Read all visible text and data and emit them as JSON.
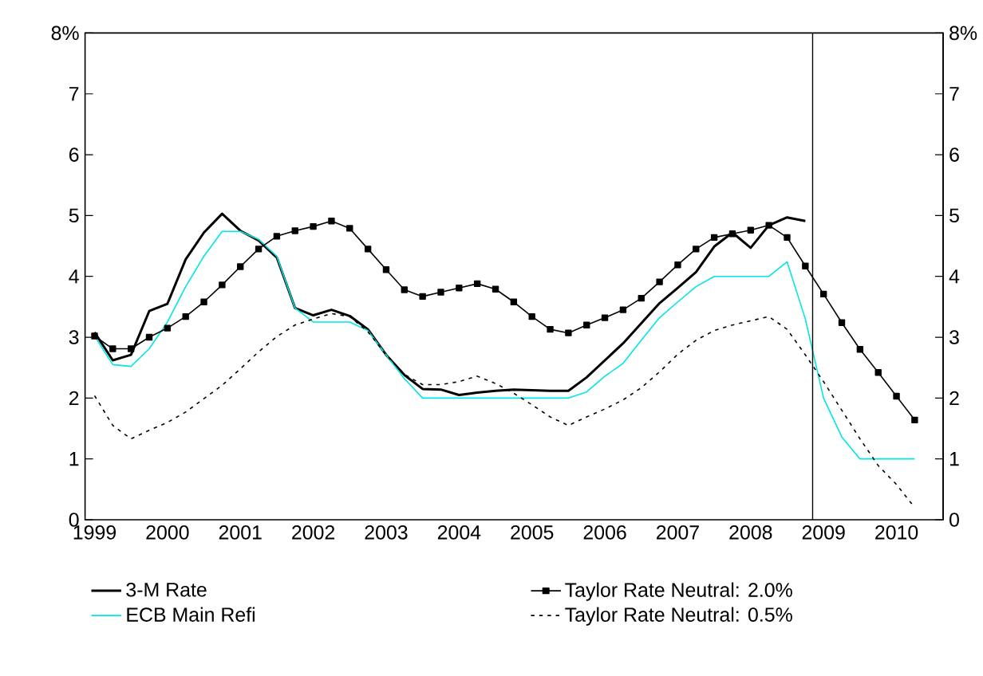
{
  "chart_data": {
    "type": "line",
    "x": [
      1999,
      1999.25,
      1999.5,
      1999.75,
      2000,
      2000.25,
      2000.5,
      2000.75,
      2001,
      2001.25,
      2001.5,
      2001.75,
      2002,
      2002.25,
      2002.5,
      2002.75,
      2003,
      2003.25,
      2003.5,
      2003.75,
      2004,
      2004.25,
      2004.5,
      2004.75,
      2005,
      2005.25,
      2005.5,
      2005.75,
      2006,
      2006.25,
      2006.5,
      2006.75,
      2007,
      2007.25,
      2007.5,
      2007.75,
      2008,
      2008.25,
      2008.5,
      2008.75,
      2009,
      2009.25,
      2009.5,
      2009.75,
      2010,
      2010.25
    ],
    "series": [
      {
        "name": "3-M Rate",
        "color": "#000000",
        "line_style": "solid",
        "marker": "none",
        "values": [
          3.08,
          2.62,
          2.71,
          3.43,
          3.55,
          4.28,
          4.72,
          5.03,
          4.75,
          4.59,
          4.31,
          3.48,
          3.36,
          3.45,
          3.35,
          3.13,
          2.71,
          2.38,
          2.15,
          2.14,
          2.05,
          2.09,
          2.12,
          2.14,
          2.13,
          2.12,
          2.12,
          2.34,
          2.62,
          2.9,
          3.23,
          3.56,
          3.81,
          4.07,
          4.49,
          4.72,
          4.47,
          4.84,
          4.97,
          4.91,
          null,
          null,
          null,
          null,
          null,
          null
        ]
      },
      {
        "name": "ECB Main Refi",
        "color": "#00e5e5",
        "line_style": "solid",
        "marker": "none",
        "values": [
          3.02,
          2.55,
          2.52,
          2.81,
          3.25,
          3.83,
          4.33,
          4.74,
          4.74,
          4.61,
          4.33,
          3.48,
          3.25,
          3.25,
          3.25,
          3.11,
          2.71,
          2.32,
          2.0,
          2.0,
          2.0,
          2.0,
          2.0,
          2.0,
          2.0,
          2.0,
          2.0,
          2.1,
          2.36,
          2.57,
          2.95,
          3.32,
          3.58,
          3.83,
          4.0,
          4.0,
          4.0,
          4.0,
          4.24,
          3.3,
          2.0,
          1.36,
          1.0,
          1.0,
          1.0,
          1.0
        ]
      },
      {
        "name": "Taylor Rate Neutral: 2.0%",
        "color": "#000000",
        "line_style": "solid",
        "marker": "square",
        "values": [
          3.02,
          2.81,
          2.81,
          3.0,
          3.15,
          3.34,
          3.58,
          3.86,
          4.16,
          4.45,
          4.66,
          4.75,
          4.82,
          4.91,
          4.79,
          4.45,
          4.11,
          3.78,
          3.67,
          3.74,
          3.81,
          3.88,
          3.79,
          3.58,
          3.34,
          3.13,
          3.07,
          3.2,
          3.32,
          3.45,
          3.64,
          3.91,
          4.19,
          4.45,
          4.64,
          4.7,
          4.76,
          4.84,
          4.64,
          4.17,
          3.71,
          3.24,
          2.8,
          2.42,
          2.03,
          1.64
        ]
      },
      {
        "name": "Taylor Rate Neutral: 0.5%",
        "color": "#000000",
        "line_style": "dashed",
        "marker": "none",
        "values": [
          2.04,
          1.55,
          1.33,
          1.47,
          1.6,
          1.77,
          1.99,
          2.21,
          2.48,
          2.76,
          3.01,
          3.2,
          3.3,
          3.39,
          3.34,
          3.09,
          2.71,
          2.39,
          2.22,
          2.22,
          2.27,
          2.36,
          2.24,
          2.08,
          1.89,
          1.69,
          1.55,
          1.69,
          1.82,
          1.97,
          2.17,
          2.43,
          2.72,
          2.95,
          3.11,
          3.2,
          3.27,
          3.34,
          3.13,
          2.71,
          2.27,
          1.8,
          1.33,
          0.89,
          0.58,
          0.2
        ]
      }
    ],
    "xlim": [
      1998.87,
      2010.64
    ],
    "xticks": [
      1999,
      2000,
      2001,
      2002,
      2003,
      2004,
      2005,
      2006,
      2007,
      2008,
      2009,
      2010
    ],
    "ylim": [
      0,
      8
    ],
    "yticks": [
      0,
      1,
      2,
      3,
      4,
      5,
      6,
      7,
      {
        "value": 8,
        "label": "8%"
      }
    ],
    "y2lim": [
      0,
      8
    ],
    "y2ticks": [
      0,
      1,
      2,
      3,
      4,
      5,
      6,
      7,
      {
        "value": 8,
        "label": "8%"
      }
    ],
    "ref_lines": [
      {
        "axis": "x",
        "value": 2008.85,
        "color": "#000000"
      }
    ],
    "grid": false,
    "legend": "bottom"
  }
}
